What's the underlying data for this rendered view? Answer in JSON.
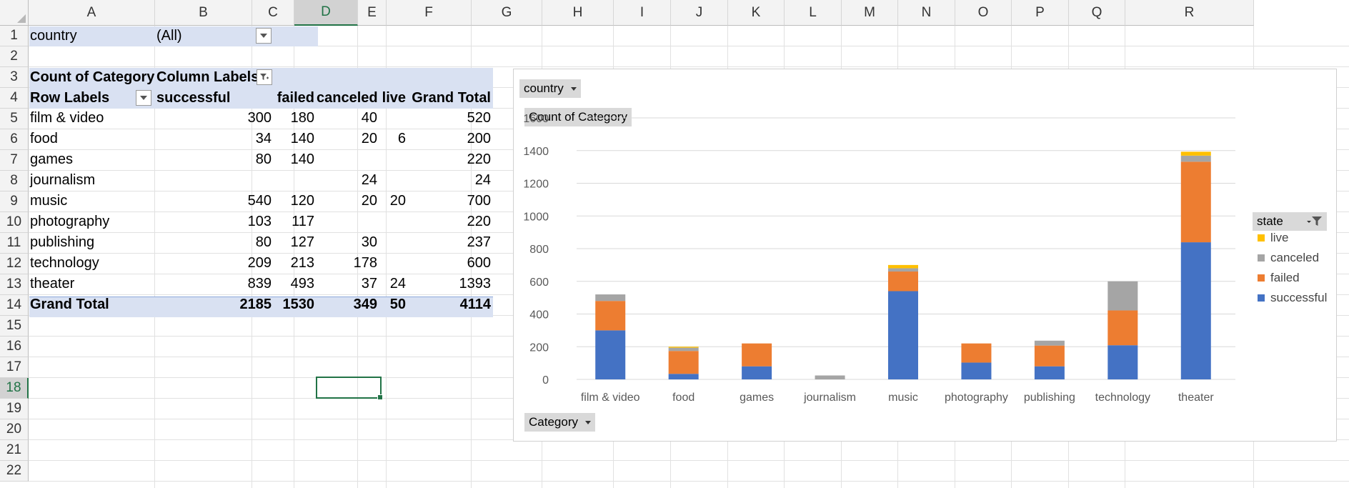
{
  "columns": [
    "A",
    "B",
    "C",
    "D",
    "E",
    "F",
    "G",
    "H",
    "I",
    "J",
    "K",
    "L",
    "M",
    "N",
    "O",
    "P",
    "Q",
    "R"
  ],
  "rows": [
    "1",
    "2",
    "3",
    "4",
    "5",
    "6",
    "7",
    "8",
    "9",
    "10",
    "11",
    "12",
    "13",
    "14",
    "15",
    "16",
    "17",
    "18",
    "19",
    "20",
    "21",
    "22"
  ],
  "selected_column": "D",
  "selected_row": "18",
  "filter": {
    "label": "country",
    "value": "(All)"
  },
  "pivot": {
    "value_header": "Count of Category",
    "column_labels": "Column Labels",
    "row_labels": "Row Labels",
    "col_headers": [
      "successful",
      "failed",
      "canceled",
      "live",
      "Grand Total"
    ],
    "rows": [
      {
        "label": "film & video",
        "values": [
          "300",
          "180",
          "40",
          "",
          "520"
        ]
      },
      {
        "label": "food",
        "values": [
          "34",
          "140",
          "20",
          "6",
          "200"
        ]
      },
      {
        "label": "games",
        "values": [
          "80",
          "140",
          "",
          "",
          "220"
        ]
      },
      {
        "label": "journalism",
        "values": [
          "",
          "",
          "24",
          "",
          "24"
        ]
      },
      {
        "label": "music",
        "values": [
          "540",
          "120",
          "20",
          "20",
          "700"
        ]
      },
      {
        "label": "photography",
        "values": [
          "103",
          "117",
          "",
          "",
          "220"
        ]
      },
      {
        "label": "publishing",
        "values": [
          "80",
          "127",
          "30",
          "",
          "237"
        ]
      },
      {
        "label": "technology",
        "values": [
          "209",
          "213",
          "178",
          "",
          "600"
        ]
      },
      {
        "label": "theater",
        "values": [
          "839",
          "493",
          "37",
          "24",
          "1393"
        ]
      }
    ],
    "grand_total": {
      "label": "Grand Total",
      "values": [
        "2185",
        "1530",
        "349",
        "50",
        "4114"
      ]
    }
  },
  "chart_field_buttons": {
    "filter": "country",
    "values": "Count of Category",
    "axis": "Category",
    "legend": "state"
  },
  "chart_data": {
    "type": "bar",
    "stacked": true,
    "categories": [
      "film & video",
      "food",
      "games",
      "journalism",
      "music",
      "photography",
      "publishing",
      "technology",
      "theater"
    ],
    "series": [
      {
        "name": "successful",
        "color": "#4472c4",
        "values": [
          300,
          34,
          80,
          0,
          540,
          103,
          80,
          209,
          839
        ]
      },
      {
        "name": "failed",
        "color": "#ed7d31",
        "values": [
          180,
          140,
          140,
          0,
          120,
          117,
          127,
          213,
          493
        ]
      },
      {
        "name": "canceled",
        "color": "#a5a5a5",
        "values": [
          40,
          20,
          0,
          24,
          20,
          0,
          30,
          178,
          37
        ]
      },
      {
        "name": "live",
        "color": "#ffc000",
        "values": [
          0,
          6,
          0,
          0,
          20,
          0,
          0,
          0,
          24
        ]
      }
    ],
    "yticks": [
      "0",
      "200",
      "400",
      "600",
      "800",
      "1000",
      "1200",
      "1400",
      "1600"
    ],
    "ylim": [
      0,
      1600
    ],
    "grid": true,
    "legend_position": "right",
    "legend_order": [
      "live",
      "canceled",
      "failed",
      "successful"
    ]
  }
}
